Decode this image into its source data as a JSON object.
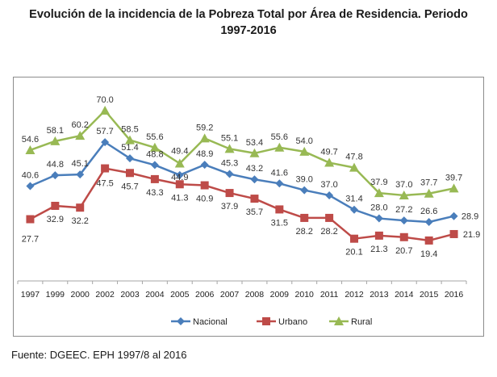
{
  "source": "Fuente: DGEEC. EPH 1997/8 al 2016",
  "chart_data": {
    "type": "line",
    "title_line1": "Evolución de la incidencia de la Pobreza Total por Área de Residencia. Periodo",
    "title_line2": "1997-2016",
    "xlabel": "",
    "ylabel": "",
    "categories": [
      "1997",
      "1999",
      "2000",
      "2002",
      "2003",
      "2004",
      "2005",
      "2006",
      "2007",
      "2008",
      "2009",
      "2010",
      "2011",
      "2012",
      "2013",
      "2014",
      "2015",
      "2016"
    ],
    "ylim": [
      0,
      75
    ],
    "grid": false,
    "legend_position": "bottom",
    "series": [
      {
        "name": "Nacional",
        "color": "#4a7ebb",
        "marker": "diamond",
        "values": [
          40.6,
          44.8,
          45.1,
          57.7,
          51.4,
          48.8,
          44.9,
          48.9,
          45.3,
          43.2,
          41.6,
          39.0,
          37.0,
          31.4,
          28.0,
          27.2,
          26.6,
          28.9
        ],
        "labels": [
          "40.6",
          "44.8",
          "45.1",
          "57.7",
          "51.4",
          "48.8",
          "44.9",
          "48.9",
          "45.3",
          "43.2",
          "41.6",
          "39.0",
          "37.0",
          "31.4",
          "28.0",
          "27.2",
          "26.6",
          "28.9"
        ]
      },
      {
        "name": "Urbano",
        "color": "#be4b48",
        "marker": "square",
        "values": [
          27.7,
          32.9,
          32.2,
          47.5,
          45.7,
          43.3,
          41.3,
          40.9,
          37.9,
          35.7,
          31.5,
          28.2,
          28.2,
          20.1,
          21.3,
          20.7,
          19.4,
          21.9
        ],
        "labels": [
          "27.7",
          "32.9",
          "32.2",
          "47.5",
          "45.7",
          "43.3",
          "41.3",
          "40.9",
          "37.9",
          "35.7",
          "31.5",
          "28.2",
          "28.2",
          "20.1",
          "21.3",
          "20.7",
          "19.4",
          "21.9"
        ]
      },
      {
        "name": "Rural",
        "color": "#98b954",
        "marker": "triangle",
        "values": [
          54.6,
          58.1,
          60.2,
          70.0,
          58.5,
          55.6,
          49.4,
          59.2,
          55.1,
          53.4,
          55.6,
          54.0,
          49.7,
          47.8,
          37.9,
          37.0,
          37.7,
          39.7
        ],
        "labels": [
          "54.6",
          "58.1",
          "60.2",
          "70.0",
          "58.5",
          "55.6",
          "49.4",
          "59.2",
          "55.1",
          "53.4",
          "55.6",
          "54.0",
          "49.7",
          "47.8",
          "37.9",
          "37.0",
          "37.7",
          "39.7"
        ]
      }
    ]
  }
}
